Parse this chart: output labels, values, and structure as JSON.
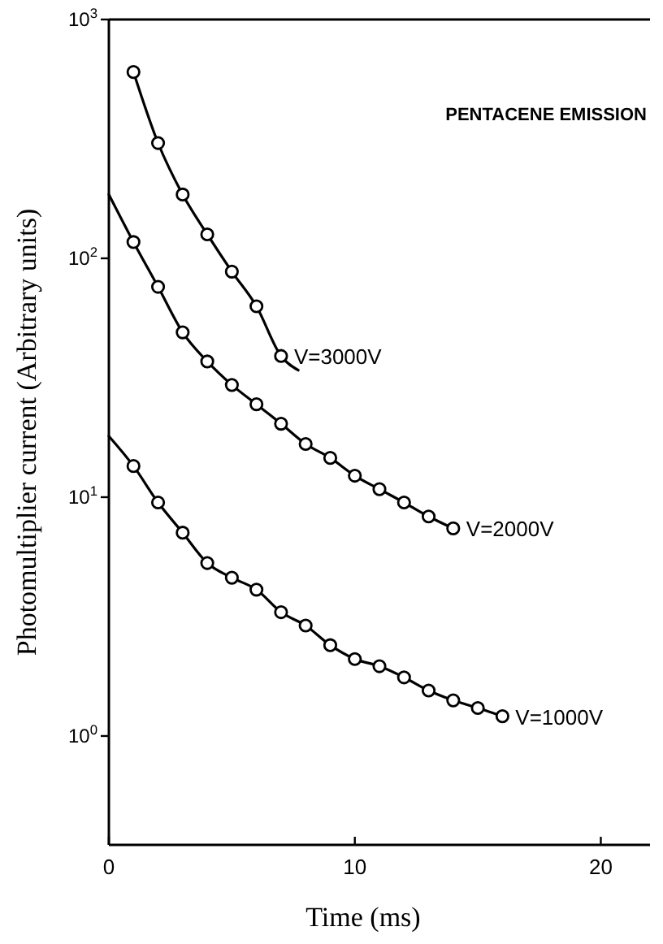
{
  "chart_data": {
    "type": "line",
    "xlabel": "Time (ms)",
    "ylabel": "Photomultiplier current (Arbitrary units)",
    "log": "y",
    "grid": false,
    "legend": false,
    "marker": "circle",
    "line_style": "solid",
    "xlim": [
      0,
      22
    ],
    "xticks": [
      0,
      10,
      20
    ],
    "ylim": [
      0.35,
      1000
    ],
    "yticks": [
      {
        "value": 1,
        "label": "10$^{0}$"
      },
      {
        "value": 10,
        "label": "10$^{1}$"
      },
      {
        "value": 100,
        "label": "10$^{2}$"
      },
      {
        "value": 1000,
        "label": "10$^{3}$"
      }
    ],
    "annotations": [
      "PENTACENE EMISSION"
    ],
    "series": [
      {
        "marker": "none",
        "color": "#000000",
        "x": [
          1,
          2,
          3,
          4,
          5,
          6,
          7,
          7.7
        ],
        "values": [
          603,
          304,
          185,
          126,
          88,
          63,
          39,
          34
        ]
      },
      {
        "marker": "none",
        "color": "#000000",
        "x": [
          0,
          1,
          2,
          3,
          4,
          5,
          6,
          7,
          8,
          9,
          10,
          11,
          12,
          13,
          14
        ],
        "values": [
          185,
          117,
          76,
          49,
          37,
          29.5,
          24.5,
          20.3,
          16.7,
          14.6,
          12.3,
          10.8,
          9.5,
          8.3,
          7.4
        ]
      },
      {
        "marker": "none",
        "color": "#000000",
        "x": [
          0,
          1,
          2,
          3,
          4,
          5,
          6,
          7,
          8,
          9,
          10,
          11,
          12,
          13,
          14,
          15,
          16
        ],
        "values": [
          18,
          13.5,
          9.5,
          7.1,
          5.3,
          4.6,
          4.1,
          3.3,
          2.9,
          2.4,
          2.1,
          1.96,
          1.76,
          1.55,
          1.41,
          1.31,
          1.21
        ]
      },
      {
        "type": "scatter",
        "name": "V=3000V",
        "color": "#000000",
        "x": [
          1,
          2,
          3,
          4,
          5,
          6,
          7
        ],
        "values": [
          603,
          304,
          185,
          126,
          88,
          63,
          39
        ]
      },
      {
        "type": "scatter",
        "name": "V=2000V",
        "color": "#000000",
        "x": [
          1,
          2,
          3,
          4,
          5,
          6,
          7,
          8,
          9,
          10,
          11,
          12,
          13,
          14
        ],
        "values": [
          117,
          76,
          49,
          37,
          29.5,
          24.5,
          20.3,
          16.7,
          14.6,
          12.3,
          10.8,
          9.5,
          8.3,
          7.4
        ]
      },
      {
        "type": "scatter",
        "name": "V=1000V",
        "color": "#000000",
        "x": [
          1,
          2,
          3,
          4,
          5,
          6,
          7,
          8,
          9,
          10,
          11,
          12,
          13,
          14,
          15,
          16
        ],
        "values": [
          13.5,
          9.5,
          7.1,
          5.3,
          4.6,
          4.1,
          3.3,
          2.9,
          2.4,
          2.1,
          1.96,
          1.76,
          1.55,
          1.41,
          1.31,
          1.21
        ]
      }
    ]
  }
}
